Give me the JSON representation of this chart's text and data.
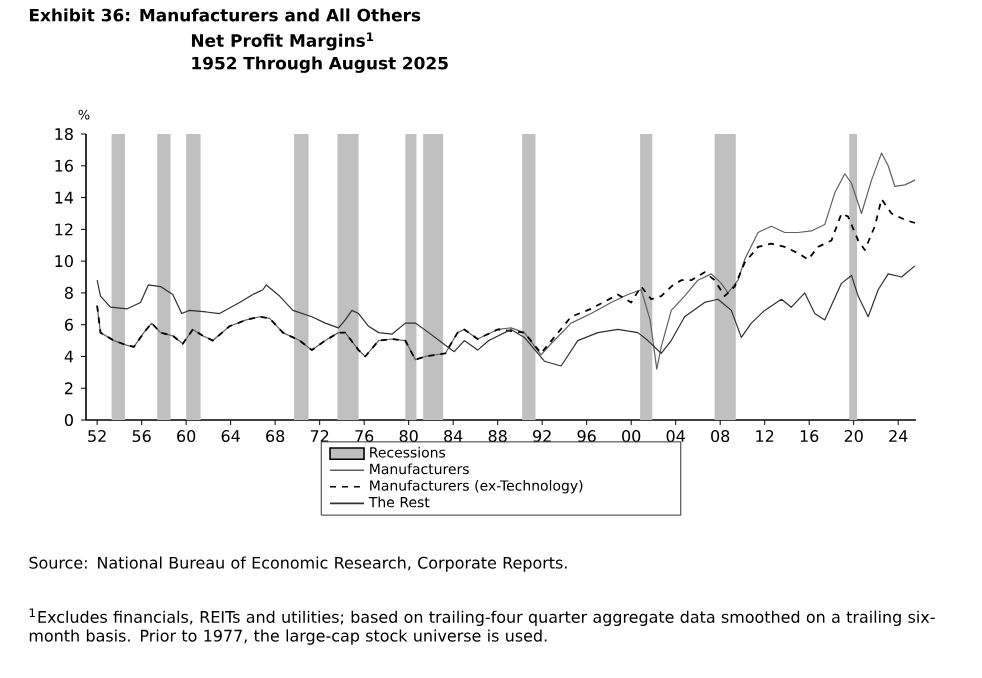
{
  "chart_data": {
    "type": "line",
    "title": "Exhibit 36: Manufacturers and All Others",
    "subtitle": "Net Profit Margins$^{1}$",
    "annotations": [
      "1952 Through August 2025",
      "Source: National Bureau of Economic Research, Corporate Reports.",
      "$^{1}$Excludes financials, REITs and utilities; based on trailing-four quarter aggregate data smoothed on a trailing six-month basis. Prior to 1977, the large-cap stock universe is used."
    ],
    "ylabel": "%",
    "xlim": [
      1951,
      2025.6
    ],
    "ylim": [
      0,
      18
    ],
    "xticks": [
      {
        "value": 1952,
        "label": "52"
      },
      {
        "value": 1956,
        "label": "56"
      },
      {
        "value": 1960,
        "label": "60"
      },
      {
        "value": 1964,
        "label": "64"
      },
      {
        "value": 1968,
        "label": "68"
      },
      {
        "value": 1972,
        "label": "72"
      },
      {
        "value": 1976,
        "label": "76"
      },
      {
        "value": 1980,
        "label": "80"
      },
      {
        "value": 1984,
        "label": "84"
      },
      {
        "value": 1988,
        "label": "88"
      },
      {
        "value": 1992,
        "label": "92"
      },
      {
        "value": 1996,
        "label": "96"
      },
      {
        "value": 2000,
        "label": "00"
      },
      {
        "value": 2004,
        "label": "04"
      },
      {
        "value": 2008,
        "label": "08"
      },
      {
        "value": 2012,
        "label": "12"
      },
      {
        "value": 2016,
        "label": "16"
      },
      {
        "value": 2020,
        "label": "20"
      },
      {
        "value": 2024,
        "label": "24"
      }
    ],
    "yticks": [
      0,
      2,
      4,
      6,
      8,
      10,
      12,
      14,
      16,
      18
    ],
    "legend": "bottom",
    "bands": [
      {
        "axis": "x",
        "from": 1953.3,
        "to": 1954.5,
        "label": "Recessions",
        "color": "#c0c0c0"
      },
      {
        "axis": "x",
        "from": 1957.4,
        "to": 1958.6,
        "color": "#c0c0c0"
      },
      {
        "axis": "x",
        "from": 1960.0,
        "to": 1961.3,
        "color": "#c0c0c0"
      },
      {
        "axis": "x",
        "from": 1969.7,
        "to": 1971.0,
        "color": "#c0c0c0"
      },
      {
        "axis": "x",
        "from": 1973.6,
        "to": 1975.5,
        "color": "#c0c0c0"
      },
      {
        "axis": "x",
        "from": 1979.7,
        "to": 1980.7,
        "color": "#c0c0c0"
      },
      {
        "axis": "x",
        "from": 1981.3,
        "to": 1983.1,
        "color": "#c0c0c0"
      },
      {
        "axis": "x",
        "from": 1990.2,
        "to": 1991.4,
        "color": "#c0c0c0"
      },
      {
        "axis": "x",
        "from": 2000.8,
        "to": 2001.9,
        "color": "#c0c0c0"
      },
      {
        "axis": "x",
        "from": 2007.5,
        "to": 2009.4,
        "color": "#c0c0c0"
      },
      {
        "axis": "x",
        "from": 2019.6,
        "to": 2020.3,
        "color": "#c0c0c0"
      }
    ],
    "series": [
      {
        "name": "Manufacturers",
        "color": "#606060",
        "line_style": "solid",
        "x": [
          1952.0,
          1952.3,
          1953.5,
          1954.7,
          1955.3,
          1956.2,
          1956.9,
          1957.7,
          1958.8,
          1959.7,
          1960.6,
          1961.5,
          1962.4,
          1963.9,
          1965.4,
          1966.6,
          1967.5,
          1968.7,
          1970.2,
          1971.3,
          1972.5,
          1973.7,
          1974.3,
          1975.5,
          1976.1,
          1977.3,
          1978.5,
          1979.7,
          1980.6,
          1981.5,
          1983.3,
          1984.4,
          1985.0,
          1986.2,
          1988.0,
          1989.2,
          1990.4,
          1991.9,
          1992.8,
          1994.6,
          1996.4,
          1998.2,
          1999.7,
          2000.9,
          2001.7,
          2002.3,
          2002.7,
          2003.6,
          2004.8,
          2006.0,
          2007.2,
          2008.1,
          2008.7,
          2009.6,
          2010.2,
          2011.4,
          2012.6,
          2013.8,
          2015.0,
          2016.2,
          2017.4,
          2018.3,
          2019.2,
          2019.8,
          2020.7,
          2021.6,
          2022.5,
          2023.1,
          2023.7,
          2024.6,
          2025.5
        ],
        "values": [
          7.2,
          5.5,
          5.0,
          4.7,
          4.6,
          5.5,
          6.1,
          5.5,
          5.3,
          4.8,
          5.7,
          5.3,
          5.0,
          5.9,
          6.3,
          6.5,
          6.4,
          5.5,
          5.0,
          4.4,
          5.0,
          5.5,
          5.5,
          4.4,
          4.0,
          5.0,
          5.1,
          5.0,
          3.8,
          4.0,
          4.2,
          5.5,
          5.7,
          5.1,
          5.7,
          5.8,
          5.5,
          4.1,
          4.8,
          6.1,
          6.7,
          7.4,
          7.9,
          8.2,
          6.3,
          3.2,
          4.6,
          6.9,
          7.8,
          8.8,
          9.2,
          8.6,
          8.0,
          8.8,
          10.1,
          11.8,
          12.2,
          11.8,
          11.8,
          11.9,
          12.3,
          14.3,
          15.5,
          14.9,
          13.0,
          15.1,
          16.8,
          16.0,
          14.7,
          14.8,
          15.1
        ]
      },
      {
        "name": "Manufacturers (ex-Technology)",
        "color": "#000000",
        "line_style": "dashed",
        "x": [
          1952.0,
          1952.3,
          1953.5,
          1954.7,
          1955.3,
          1956.2,
          1956.9,
          1957.7,
          1958.8,
          1959.7,
          1960.6,
          1961.5,
          1962.4,
          1963.9,
          1965.4,
          1966.6,
          1967.5,
          1968.7,
          1970.2,
          1971.3,
          1972.5,
          1973.7,
          1974.3,
          1975.5,
          1976.1,
          1977.3,
          1978.5,
          1979.7,
          1980.6,
          1981.5,
          1983.3,
          1984.4,
          1985.0,
          1986.2,
          1988.0,
          1990.4,
          1991.9,
          1994.6,
          1996.4,
          1998.8,
          2000.0,
          2000.9,
          2001.8,
          2002.7,
          2003.6,
          2004.5,
          2005.4,
          2006.6,
          2007.5,
          2008.4,
          2009.3,
          2010.2,
          2011.4,
          2012.6,
          2013.8,
          2015.0,
          2015.9,
          2016.8,
          2018.0,
          2018.9,
          2019.5,
          2020.4,
          2021.0,
          2021.9,
          2022.5,
          2023.4,
          2024.6,
          2025.5
        ],
        "values": [
          7.2,
          5.5,
          5.0,
          4.7,
          4.6,
          5.5,
          6.1,
          5.5,
          5.3,
          4.8,
          5.7,
          5.3,
          5.0,
          5.9,
          6.3,
          6.5,
          6.4,
          5.5,
          5.0,
          4.4,
          5.0,
          5.5,
          5.5,
          4.4,
          4.0,
          5.0,
          5.1,
          5.0,
          3.8,
          4.0,
          4.2,
          5.5,
          5.7,
          5.1,
          5.7,
          5.5,
          4.2,
          6.5,
          7.0,
          7.9,
          7.4,
          8.4,
          7.6,
          7.8,
          8.4,
          8.8,
          8.8,
          9.3,
          8.8,
          7.8,
          8.4,
          9.9,
          10.9,
          11.1,
          10.9,
          10.5,
          10.1,
          10.9,
          11.3,
          13.0,
          12.8,
          11.3,
          10.7,
          12.2,
          13.9,
          13.0,
          12.6,
          12.4
        ]
      },
      {
        "name": "The Rest",
        "color": "#303030",
        "line_style": "solid",
        "x": [
          1952.0,
          1952.3,
          1953.2,
          1954.7,
          1955.9,
          1956.6,
          1957.7,
          1958.8,
          1959.6,
          1960.3,
          1961.8,
          1963.0,
          1964.8,
          1966.0,
          1966.9,
          1967.2,
          1968.4,
          1969.6,
          1971.3,
          1972.5,
          1973.7,
          1974.3,
          1974.9,
          1975.5,
          1976.4,
          1977.3,
          1978.5,
          1979.7,
          1980.6,
          1981.8,
          1983.3,
          1984.1,
          1985.0,
          1986.2,
          1987.2,
          1989.2,
          1990.4,
          1992.2,
          1993.7,
          1995.2,
          1997.0,
          1998.8,
          2000.6,
          2001.5,
          2002.7,
          2003.6,
          2004.8,
          2006.6,
          2007.8,
          2009.0,
          2009.9,
          2010.8,
          2012.0,
          2013.5,
          2014.4,
          2015.6,
          2016.5,
          2017.4,
          2018.9,
          2019.8,
          2020.4,
          2021.3,
          2022.2,
          2023.1,
          2024.3,
          2025.5
        ],
        "values": [
          8.8,
          7.8,
          7.1,
          7.0,
          7.4,
          8.5,
          8.4,
          7.9,
          6.7,
          6.9,
          6.8,
          6.7,
          7.4,
          7.9,
          8.2,
          8.5,
          7.8,
          6.9,
          6.5,
          6.1,
          5.8,
          6.3,
          6.9,
          6.7,
          5.9,
          5.5,
          5.4,
          6.1,
          6.1,
          5.5,
          4.7,
          4.3,
          5.0,
          4.4,
          5.0,
          5.7,
          5.2,
          3.7,
          3.4,
          5.0,
          5.5,
          5.7,
          5.5,
          5.0,
          4.2,
          5.0,
          6.5,
          7.4,
          7.6,
          6.9,
          5.2,
          6.1,
          6.9,
          7.6,
          7.1,
          8.0,
          6.7,
          6.3,
          8.6,
          9.1,
          7.8,
          6.5,
          8.2,
          9.2,
          9.0,
          9.7
        ]
      }
    ]
  }
}
